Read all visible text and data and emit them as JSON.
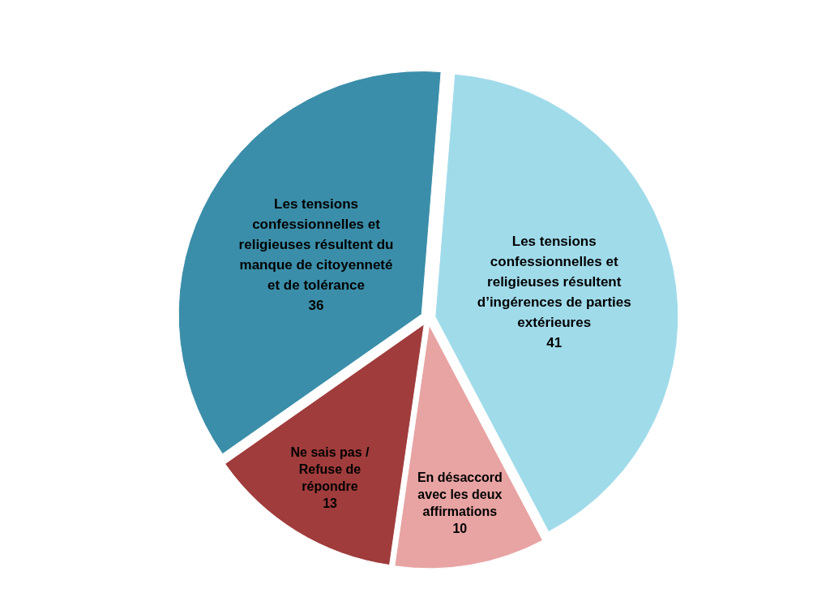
{
  "chart_data": {
    "type": "pie",
    "categories": [
      "Les tensions confessionnelles et religieuses résultent d’ingérences de parties extérieures",
      "En désaccord avec les deux affirmations",
      "Ne sais pas / Refuse de répondre",
      "Les tensions confessionnelles et religieuses résultent du manque de citoyenneté et de tolérance"
    ],
    "values": [
      41,
      10,
      13,
      36
    ],
    "colors": [
      "#a0dbea",
      "#e8a3a3",
      "#a03c3c",
      "#3b8ea9"
    ],
    "data_labels": true
  }
}
